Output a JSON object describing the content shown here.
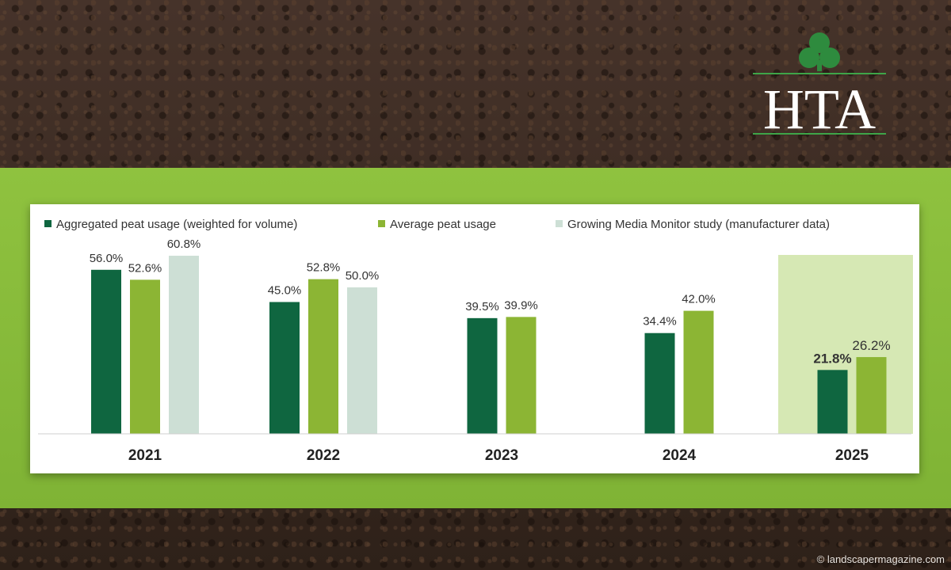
{
  "brand": {
    "logo_text": "HTA",
    "shamrock_color": "#2e8b3e",
    "line_color": "#3ea548"
  },
  "credit": "© landscapermagazine.com",
  "colors": {
    "band": "#86bb3a",
    "highlight": "#d6e8b4"
  },
  "chart_data": {
    "type": "bar",
    "categories": [
      "2021",
      "2022",
      "2023",
      "2024",
      "2025"
    ],
    "series": [
      {
        "name": "Aggregated peat usage (weighted for volume)",
        "color": "#0f6640",
        "values": [
          56.0,
          45.0,
          39.5,
          34.4,
          21.8
        ]
      },
      {
        "name": "Average peat usage",
        "color": "#8cb534",
        "values": [
          52.6,
          52.8,
          39.9,
          42.0,
          26.2
        ]
      },
      {
        "name": "Growing Media Monitor study (manufacturer data)",
        "color": "#cddfd5",
        "values": [
          60.8,
          50.0,
          null,
          null,
          null
        ]
      }
    ],
    "value_suffix": "%",
    "highlight_category": "2025",
    "ylim": [
      0,
      70
    ],
    "legend_position": "top",
    "grid": false
  }
}
